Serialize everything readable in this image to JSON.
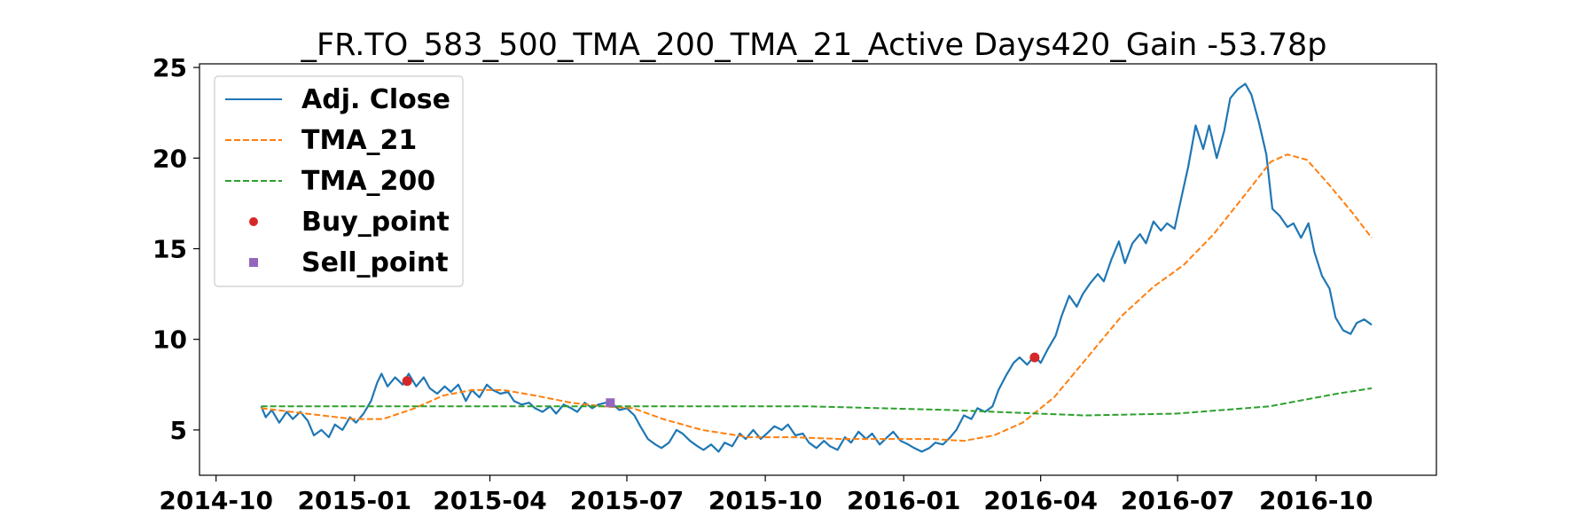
{
  "chart_data": {
    "type": "line",
    "title": "_FR.TO_583_500_TMA_200_TMA_21_Active Days420_Gain -53.78p",
    "xlabel": "",
    "ylabel": "",
    "x_range": [
      "2014-09-20",
      "2016-12-20"
    ],
    "ylim": [
      2.5,
      25.2
    ],
    "x_ticks": [
      {
        "date": "2014-10-01",
        "label": "2014-10"
      },
      {
        "date": "2015-01-01",
        "label": "2015-01"
      },
      {
        "date": "2015-04-01",
        "label": "2015-04"
      },
      {
        "date": "2015-07-01",
        "label": "2015-07"
      },
      {
        "date": "2015-10-01",
        "label": "2015-10"
      },
      {
        "date": "2016-01-01",
        "label": "2016-01"
      },
      {
        "date": "2016-04-01",
        "label": "2016-04"
      },
      {
        "date": "2016-07-01",
        "label": "2016-07"
      },
      {
        "date": "2016-10-01",
        "label": "2016-10"
      }
    ],
    "y_ticks": [
      5,
      10,
      15,
      20,
      25
    ],
    "grid": false,
    "legend_position": "top-left",
    "series": [
      {
        "name": "Adj. Close",
        "style": "solid",
        "color": "#1f77b4",
        "points": [
          [
            "2014-10-31",
            6.3
          ],
          [
            "2014-11-03",
            5.7
          ],
          [
            "2014-11-07",
            6.1
          ],
          [
            "2014-11-12",
            5.4
          ],
          [
            "2014-11-17",
            6.0
          ],
          [
            "2014-11-21",
            5.6
          ],
          [
            "2014-11-26",
            6.0
          ],
          [
            "2014-12-01",
            5.5
          ],
          [
            "2014-12-05",
            4.7
          ],
          [
            "2014-12-10",
            5.0
          ],
          [
            "2014-12-15",
            4.6
          ],
          [
            "2014-12-19",
            5.3
          ],
          [
            "2014-12-24",
            5.0
          ],
          [
            "2014-12-29",
            5.7
          ],
          [
            "2015-01-02",
            5.4
          ],
          [
            "2015-01-07",
            5.9
          ],
          [
            "2015-01-12",
            6.6
          ],
          [
            "2015-01-16",
            7.6
          ],
          [
            "2015-01-19",
            8.1
          ],
          [
            "2015-01-23",
            7.4
          ],
          [
            "2015-01-28",
            7.9
          ],
          [
            "2015-02-02",
            7.5
          ],
          [
            "2015-02-06",
            8.1
          ],
          [
            "2015-02-11",
            7.4
          ],
          [
            "2015-02-16",
            7.9
          ],
          [
            "2015-02-20",
            7.3
          ],
          [
            "2015-02-25",
            7.0
          ],
          [
            "2015-03-02",
            7.4
          ],
          [
            "2015-03-06",
            7.1
          ],
          [
            "2015-03-11",
            7.5
          ],
          [
            "2015-03-16",
            6.6
          ],
          [
            "2015-03-20",
            7.2
          ],
          [
            "2015-03-25",
            6.8
          ],
          [
            "2015-03-30",
            7.5
          ],
          [
            "2015-04-03",
            7.2
          ],
          [
            "2015-04-08",
            7.0
          ],
          [
            "2015-04-13",
            7.1
          ],
          [
            "2015-04-17",
            6.6
          ],
          [
            "2015-04-22",
            6.4
          ],
          [
            "2015-04-27",
            6.5
          ],
          [
            "2015-05-01",
            6.2
          ],
          [
            "2015-05-06",
            6.0
          ],
          [
            "2015-05-11",
            6.3
          ],
          [
            "2015-05-15",
            5.9
          ],
          [
            "2015-05-20",
            6.4
          ],
          [
            "2015-05-25",
            6.2
          ],
          [
            "2015-05-29",
            6.0
          ],
          [
            "2015-06-03",
            6.5
          ],
          [
            "2015-06-08",
            6.2
          ],
          [
            "2015-06-12",
            6.4
          ],
          [
            "2015-06-17",
            6.5
          ],
          [
            "2015-06-22",
            6.4
          ],
          [
            "2015-06-26",
            6.1
          ],
          [
            "2015-07-01",
            6.2
          ],
          [
            "2015-07-06",
            5.8
          ],
          [
            "2015-07-10",
            5.2
          ],
          [
            "2015-07-15",
            4.5
          ],
          [
            "2015-07-20",
            4.2
          ],
          [
            "2015-07-24",
            4.0
          ],
          [
            "2015-07-29",
            4.3
          ],
          [
            "2015-08-03",
            5.0
          ],
          [
            "2015-08-07",
            4.8
          ],
          [
            "2015-08-12",
            4.4
          ],
          [
            "2015-08-17",
            4.1
          ],
          [
            "2015-08-21",
            3.9
          ],
          [
            "2015-08-26",
            4.2
          ],
          [
            "2015-08-31",
            3.8
          ],
          [
            "2015-09-04",
            4.3
          ],
          [
            "2015-09-09",
            4.1
          ],
          [
            "2015-09-14",
            4.8
          ],
          [
            "2015-09-18",
            4.5
          ],
          [
            "2015-09-23",
            5.0
          ],
          [
            "2015-09-28",
            4.5
          ],
          [
            "2015-10-02",
            4.8
          ],
          [
            "2015-10-07",
            5.2
          ],
          [
            "2015-10-12",
            5.0
          ],
          [
            "2015-10-16",
            5.3
          ],
          [
            "2015-10-21",
            4.7
          ],
          [
            "2015-10-26",
            4.8
          ],
          [
            "2015-10-30",
            4.3
          ],
          [
            "2015-11-04",
            4.0
          ],
          [
            "2015-11-09",
            4.4
          ],
          [
            "2015-11-13",
            4.1
          ],
          [
            "2015-11-18",
            3.9
          ],
          [
            "2015-11-23",
            4.6
          ],
          [
            "2015-11-27",
            4.3
          ],
          [
            "2015-12-02",
            4.9
          ],
          [
            "2015-12-07",
            4.5
          ],
          [
            "2015-12-11",
            4.8
          ],
          [
            "2015-12-16",
            4.2
          ],
          [
            "2015-12-21",
            4.6
          ],
          [
            "2015-12-25",
            4.9
          ],
          [
            "2015-12-30",
            4.4
          ],
          [
            "2016-01-04",
            4.2
          ],
          [
            "2016-01-08",
            4.0
          ],
          [
            "2016-01-13",
            3.8
          ],
          [
            "2016-01-18",
            4.0
          ],
          [
            "2016-01-22",
            4.3
          ],
          [
            "2016-01-27",
            4.2
          ],
          [
            "2016-02-01",
            4.6
          ],
          [
            "2016-02-05",
            5.0
          ],
          [
            "2016-02-10",
            5.8
          ],
          [
            "2016-02-15",
            5.6
          ],
          [
            "2016-02-19",
            6.2
          ],
          [
            "2016-02-24",
            6.0
          ],
          [
            "2016-02-29",
            6.3
          ],
          [
            "2016-03-04",
            7.2
          ],
          [
            "2016-03-09",
            8.0
          ],
          [
            "2016-03-14",
            8.7
          ],
          [
            "2016-03-18",
            9.0
          ],
          [
            "2016-03-23",
            8.6
          ],
          [
            "2016-03-28",
            9.1
          ],
          [
            "2016-04-01",
            8.7
          ],
          [
            "2016-04-06",
            9.5
          ],
          [
            "2016-04-11",
            10.2
          ],
          [
            "2016-04-15",
            11.3
          ],
          [
            "2016-04-20",
            12.4
          ],
          [
            "2016-04-25",
            11.8
          ],
          [
            "2016-04-29",
            12.5
          ],
          [
            "2016-05-04",
            13.1
          ],
          [
            "2016-05-09",
            13.6
          ],
          [
            "2016-05-13",
            13.2
          ],
          [
            "2016-05-18",
            14.4
          ],
          [
            "2016-05-23",
            15.4
          ],
          [
            "2016-05-27",
            14.2
          ],
          [
            "2016-06-01",
            15.3
          ],
          [
            "2016-06-06",
            15.8
          ],
          [
            "2016-06-10",
            15.3
          ],
          [
            "2016-06-15",
            16.5
          ],
          [
            "2016-06-20",
            16.0
          ],
          [
            "2016-06-24",
            16.4
          ],
          [
            "2016-06-29",
            16.1
          ],
          [
            "2016-07-04",
            18.0
          ],
          [
            "2016-07-08",
            19.5
          ],
          [
            "2016-07-13",
            21.8
          ],
          [
            "2016-07-18",
            20.5
          ],
          [
            "2016-07-22",
            21.8
          ],
          [
            "2016-07-27",
            20.0
          ],
          [
            "2016-08-01",
            21.5
          ],
          [
            "2016-08-05",
            23.3
          ],
          [
            "2016-08-10",
            23.8
          ],
          [
            "2016-08-15",
            24.1
          ],
          [
            "2016-08-19",
            23.5
          ],
          [
            "2016-08-24",
            22.0
          ],
          [
            "2016-08-29",
            20.2
          ],
          [
            "2016-09-02",
            17.2
          ],
          [
            "2016-09-07",
            16.8
          ],
          [
            "2016-09-12",
            16.2
          ],
          [
            "2016-09-16",
            16.4
          ],
          [
            "2016-09-21",
            15.6
          ],
          [
            "2016-09-26",
            16.4
          ],
          [
            "2016-09-30",
            14.8
          ],
          [
            "2016-10-05",
            13.5
          ],
          [
            "2016-10-10",
            12.8
          ],
          [
            "2016-10-14",
            11.2
          ],
          [
            "2016-10-19",
            10.5
          ],
          [
            "2016-10-24",
            10.3
          ],
          [
            "2016-10-28",
            10.9
          ],
          [
            "2016-11-02",
            11.1
          ],
          [
            "2016-11-07",
            10.8
          ]
        ]
      },
      {
        "name": "TMA_21",
        "style": "dashed",
        "color": "#ff7f0e",
        "points": [
          [
            "2014-10-31",
            6.2
          ],
          [
            "2014-11-30",
            5.9
          ],
          [
            "2014-12-31",
            5.6
          ],
          [
            "2015-01-20",
            5.6
          ],
          [
            "2015-02-10",
            6.2
          ],
          [
            "2015-03-01",
            6.9
          ],
          [
            "2015-03-20",
            7.2
          ],
          [
            "2015-04-10",
            7.2
          ],
          [
            "2015-05-01",
            6.9
          ],
          [
            "2015-05-25",
            6.5
          ],
          [
            "2015-06-15",
            6.3
          ],
          [
            "2015-07-05",
            6.2
          ],
          [
            "2015-07-25",
            5.6
          ],
          [
            "2015-08-20",
            5.0
          ],
          [
            "2015-09-20",
            4.6
          ],
          [
            "2015-10-20",
            4.6
          ],
          [
            "2015-11-20",
            4.5
          ],
          [
            "2015-12-20",
            4.5
          ],
          [
            "2016-01-20",
            4.5
          ],
          [
            "2016-02-10",
            4.4
          ],
          [
            "2016-03-01",
            4.7
          ],
          [
            "2016-03-20",
            5.4
          ],
          [
            "2016-04-10",
            6.8
          ],
          [
            "2016-05-01",
            8.9
          ],
          [
            "2016-05-25",
            11.3
          ],
          [
            "2016-06-15",
            12.9
          ],
          [
            "2016-07-05",
            14.1
          ],
          [
            "2016-07-25",
            15.8
          ],
          [
            "2016-08-15",
            18.0
          ],
          [
            "2016-09-01",
            19.8
          ],
          [
            "2016-09-12",
            20.2
          ],
          [
            "2016-09-25",
            19.9
          ],
          [
            "2016-10-10",
            18.5
          ],
          [
            "2016-10-25",
            17.0
          ],
          [
            "2016-11-07",
            15.6
          ]
        ]
      },
      {
        "name": "TMA_200",
        "style": "dashed",
        "color": "#2ca02c",
        "points": [
          [
            "2014-10-31",
            6.3
          ],
          [
            "2015-01-31",
            6.3
          ],
          [
            "2015-04-30",
            6.3
          ],
          [
            "2015-07-31",
            6.3
          ],
          [
            "2015-10-31",
            6.3
          ],
          [
            "2016-01-31",
            6.1
          ],
          [
            "2016-04-30",
            5.8
          ],
          [
            "2016-06-30",
            5.9
          ],
          [
            "2016-08-31",
            6.3
          ],
          [
            "2016-10-15",
            7.0
          ],
          [
            "2016-11-07",
            7.3
          ]
        ]
      }
    ],
    "markers": [
      {
        "name": "Buy_point",
        "shape": "circle",
        "color": "#d62728",
        "points": [
          [
            "2015-02-05",
            7.7
          ],
          [
            "2016-03-28",
            9.0
          ]
        ]
      },
      {
        "name": "Sell_point",
        "shape": "square",
        "color": "#9467bd",
        "points": [
          [
            "2015-06-20",
            6.5
          ]
        ]
      }
    ]
  }
}
